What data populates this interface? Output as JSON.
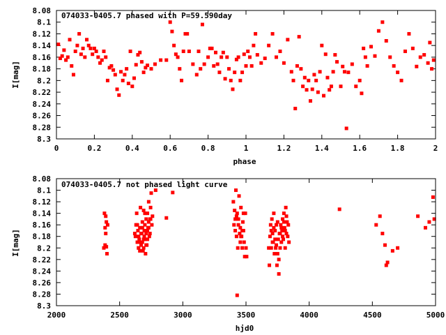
{
  "chart_data": [
    {
      "type": "scatter",
      "title": "074033-0405.7 phased with P=59.590day",
      "xlabel": "phase",
      "ylabel": "I[mag]",
      "xlim": [
        0,
        2
      ],
      "ylim": [
        8.3,
        8.08
      ],
      "y_inverted": true,
      "xticks": [
        0,
        0.2,
        0.4,
        0.6,
        0.8,
        1,
        1.2,
        1.4,
        1.6,
        1.8,
        2
      ],
      "xtick_labels": [
        "0",
        "0.2",
        "0.4",
        "0.6",
        "0.8",
        "1",
        "1.2",
        "1.4",
        "1.6",
        "1.8",
        "2"
      ],
      "yticks": [
        8.08,
        8.1,
        8.12,
        8.14,
        8.16,
        8.18,
        8.2,
        8.22,
        8.24,
        8.26,
        8.28,
        8.3
      ],
      "ytick_labels": [
        "8.08",
        "8.1",
        "8.12",
        "8.14",
        "8.16",
        "8.18",
        "8.2",
        "8.22",
        "8.24",
        "8.26",
        "8.28",
        "8.3"
      ],
      "grid": false,
      "marker_color": "#ff0000",
      "points": [
        [
          0.01,
          8.138
        ],
        [
          0.02,
          8.162
        ],
        [
          0.03,
          8.158
        ],
        [
          0.04,
          8.148
        ],
        [
          0.05,
          8.165
        ],
        [
          0.06,
          8.16
        ],
        [
          0.07,
          8.13
        ],
        [
          0.08,
          8.175
        ],
        [
          0.09,
          8.19
        ],
        [
          0.1,
          8.15
        ],
        [
          0.11,
          8.14
        ],
        [
          0.12,
          8.12
        ],
        [
          0.13,
          8.155
        ],
        [
          0.14,
          8.145
        ],
        [
          0.15,
          8.16
        ],
        [
          0.16,
          8.13
        ],
        [
          0.17,
          8.14
        ],
        [
          0.18,
          8.145
        ],
        [
          0.19,
          8.155
        ],
        [
          0.2,
          8.145
        ],
        [
          0.21,
          8.15
        ],
        [
          0.22,
          8.16
        ],
        [
          0.23,
          8.17
        ],
        [
          0.24,
          8.165
        ],
        [
          0.25,
          8.15
        ],
        [
          0.26,
          8.16
        ],
        [
          0.27,
          8.2
        ],
        [
          0.28,
          8.178
        ],
        [
          0.29,
          8.175
        ],
        [
          0.3,
          8.182
        ],
        [
          0.31,
          8.19
        ],
        [
          0.32,
          8.215
        ],
        [
          0.33,
          8.225
        ],
        [
          0.34,
          8.185
        ],
        [
          0.35,
          8.2
        ],
        [
          0.36,
          8.19
        ],
        [
          0.37,
          8.18
        ],
        [
          0.38,
          8.205
        ],
        [
          0.39,
          8.15
        ],
        [
          0.4,
          8.21
        ],
        [
          0.41,
          8.196
        ],
        [
          0.42,
          8.173
        ],
        [
          0.43,
          8.156
        ],
        [
          0.44,
          8.152
        ],
        [
          0.45,
          8.168
        ],
        [
          0.46,
          8.186
        ],
        [
          0.47,
          8.178
        ],
        [
          0.48,
          8.174
        ],
        [
          0.5,
          8.18
        ],
        [
          0.52,
          8.172
        ],
        [
          0.55,
          8.165
        ],
        [
          0.58,
          8.165
        ],
        [
          0.6,
          8.1
        ],
        [
          0.61,
          8.116
        ],
        [
          0.62,
          8.14
        ],
        [
          0.63,
          8.155
        ],
        [
          0.64,
          8.16
        ],
        [
          0.65,
          8.18
        ],
        [
          0.66,
          8.2
        ],
        [
          0.67,
          8.15
        ],
        [
          0.68,
          8.12
        ],
        [
          0.69,
          8.12
        ],
        [
          0.7,
          8.15
        ],
        [
          0.72,
          8.172
        ],
        [
          0.74,
          8.19
        ],
        [
          0.75,
          8.15
        ],
        [
          0.76,
          8.18
        ],
        [
          0.77,
          8.104
        ],
        [
          0.78,
          8.172
        ],
        [
          0.8,
          8.16
        ],
        [
          0.81,
          8.145
        ],
        [
          0.82,
          8.145
        ],
        [
          0.83,
          8.175
        ],
        [
          0.84,
          8.152
        ],
        [
          0.85,
          8.172
        ],
        [
          0.86,
          8.186
        ],
        [
          0.87,
          8.16
        ],
        [
          0.88,
          8.152
        ],
        [
          0.89,
          8.197
        ],
        [
          0.9,
          8.16
        ],
        [
          0.91,
          8.18
        ],
        [
          0.92,
          8.2
        ],
        [
          0.93,
          8.215
        ],
        [
          0.94,
          8.186
        ],
        [
          0.95,
          8.164
        ],
        [
          0.96,
          8.16
        ],
        [
          0.97,
          8.2
        ],
        [
          0.98,
          8.186
        ],
        [
          0.99,
          8.155
        ],
        [
          1.0,
          8.175
        ],
        [
          1.01,
          8.15
        ],
        [
          1.02,
          8.16
        ],
        [
          1.03,
          8.175
        ],
        [
          1.04,
          8.14
        ],
        [
          1.05,
          8.12
        ],
        [
          1.06,
          8.156
        ],
        [
          1.08,
          8.17
        ],
        [
          1.1,
          8.162
        ],
        [
          1.12,
          8.14
        ],
        [
          1.14,
          8.12
        ],
        [
          1.16,
          8.16
        ],
        [
          1.18,
          8.15
        ],
        [
          1.2,
          8.17
        ],
        [
          1.22,
          8.13
        ],
        [
          1.24,
          8.185
        ],
        [
          1.25,
          8.2
        ],
        [
          1.26,
          8.248
        ],
        [
          1.27,
          8.175
        ],
        [
          1.28,
          8.125
        ],
        [
          1.29,
          8.18
        ],
        [
          1.3,
          8.21
        ],
        [
          1.31,
          8.195
        ],
        [
          1.32,
          8.216
        ],
        [
          1.33,
          8.2
        ],
        [
          1.34,
          8.235
        ],
        [
          1.35,
          8.215
        ],
        [
          1.36,
          8.19
        ],
        [
          1.37,
          8.2
        ],
        [
          1.38,
          8.22
        ],
        [
          1.39,
          8.185
        ],
        [
          1.4,
          8.14
        ],
        [
          1.41,
          8.226
        ],
        [
          1.42,
          8.155
        ],
        [
          1.43,
          8.195
        ],
        [
          1.44,
          8.216
        ],
        [
          1.45,
          8.21
        ],
        [
          1.46,
          8.185
        ],
        [
          1.47,
          8.156
        ],
        [
          1.48,
          8.168
        ],
        [
          1.5,
          8.21
        ],
        [
          1.51,
          8.176
        ],
        [
          1.52,
          8.185
        ],
        [
          1.53,
          8.282
        ],
        [
          1.54,
          8.186
        ],
        [
          1.56,
          8.172
        ],
        [
          1.58,
          8.21
        ],
        [
          1.6,
          8.2
        ],
        [
          1.61,
          8.222
        ],
        [
          1.62,
          8.145
        ],
        [
          1.63,
          8.16
        ],
        [
          1.64,
          8.175
        ],
        [
          1.66,
          8.142
        ],
        [
          1.68,
          8.158
        ],
        [
          1.7,
          8.115
        ],
        [
          1.72,
          8.1
        ],
        [
          1.74,
          8.132
        ],
        [
          1.76,
          8.16
        ],
        [
          1.78,
          8.175
        ],
        [
          1.8,
          8.186
        ],
        [
          1.82,
          8.2
        ],
        [
          1.84,
          8.15
        ],
        [
          1.86,
          8.12
        ],
        [
          1.88,
          8.145
        ],
        [
          1.9,
          8.176
        ],
        [
          1.92,
          8.16
        ],
        [
          1.94,
          8.156
        ],
        [
          1.96,
          8.17
        ],
        [
          1.97,
          8.135
        ],
        [
          1.98,
          8.18
        ],
        [
          1.99,
          8.165
        ]
      ]
    },
    {
      "type": "scatter",
      "title": "074033-0405.7 not phased light curve",
      "xlabel": "hjd0",
      "ylabel": "I[mag]",
      "xlim": [
        2000,
        5000
      ],
      "ylim": [
        8.3,
        8.08
      ],
      "y_inverted": true,
      "xticks": [
        2000,
        2500,
        3000,
        3500,
        4000,
        4500,
        5000
      ],
      "xtick_labels": [
        "2000",
        "2500",
        "3000",
        "3500",
        "4000",
        "4500",
        "5000"
      ],
      "yticks": [
        8.08,
        8.1,
        8.12,
        8.14,
        8.16,
        8.18,
        8.2,
        8.22,
        8.24,
        8.26,
        8.28,
        8.3
      ],
      "ytick_labels": [
        "8.08",
        "8.1",
        "8.12",
        "8.14",
        "8.16",
        "8.18",
        "8.2",
        "8.22",
        "8.24",
        "8.26",
        "8.28",
        "8.3"
      ],
      "grid": false,
      "marker_color": "#ff0000",
      "points": [
        [
          2375,
          8.2
        ],
        [
          2380,
          8.14
        ],
        [
          2385,
          8.165
        ],
        [
          2390,
          8.145
        ],
        [
          2395,
          8.198
        ],
        [
          2400,
          8.21
        ],
        [
          2405,
          8.16
        ],
        [
          2395,
          8.155
        ],
        [
          2390,
          8.175
        ],
        [
          2385,
          8.195
        ],
        [
          2620,
          8.175
        ],
        [
          2625,
          8.18
        ],
        [
          2630,
          8.16
        ],
        [
          2635,
          8.14
        ],
        [
          2640,
          8.19
        ],
        [
          2645,
          8.17
        ],
        [
          2650,
          8.2
        ],
        [
          2655,
          8.185
        ],
        [
          2660,
          8.165
        ],
        [
          2665,
          8.13
        ],
        [
          2670,
          8.195
        ],
        [
          2675,
          8.175
        ],
        [
          2680,
          8.155
        ],
        [
          2685,
          8.205
        ],
        [
          2690,
          8.185
        ],
        [
          2695,
          8.17
        ],
        [
          2700,
          8.16
        ],
        [
          2705,
          8.21
        ],
        [
          2710,
          8.175
        ],
        [
          2715,
          8.195
        ],
        [
          2720,
          8.14
        ],
        [
          2725,
          8.165
        ],
        [
          2730,
          8.12
        ],
        [
          2735,
          8.18
        ],
        [
          2740,
          8.15
        ],
        [
          2745,
          8.13
        ],
        [
          2750,
          8.105
        ],
        [
          2755,
          8.16
        ],
        [
          2760,
          8.145
        ],
        [
          2640,
          8.16
        ],
        [
          2650,
          8.18
        ],
        [
          2660,
          8.19
        ],
        [
          2670,
          8.175
        ],
        [
          2680,
          8.165
        ],
        [
          2690,
          8.2
        ],
        [
          2700,
          8.185
        ],
        [
          2710,
          8.195
        ],
        [
          2720,
          8.17
        ],
        [
          2730,
          8.155
        ],
        [
          2740,
          8.175
        ],
        [
          2700,
          8.14
        ],
        [
          2690,
          8.135
        ],
        [
          2710,
          8.15
        ],
        [
          2720,
          8.185
        ],
        [
          2650,
          8.2
        ],
        [
          2660,
          8.205
        ],
        [
          2680,
          8.19
        ],
        [
          2695,
          8.18
        ],
        [
          2730,
          8.165
        ],
        [
          2745,
          8.15
        ],
        [
          2785,
          8.1
        ],
        [
          2870,
          8.148
        ],
        [
          2920,
          8.104
        ],
        [
          3400,
          8.12
        ],
        [
          3405,
          8.16
        ],
        [
          3410,
          8.135
        ],
        [
          3415,
          8.15
        ],
        [
          3420,
          8.1
        ],
        [
          3425,
          8.18
        ],
        [
          3430,
          8.14
        ],
        [
          3435,
          8.2
        ],
        [
          3440,
          8.16
        ],
        [
          3445,
          8.11
        ],
        [
          3450,
          8.175
        ],
        [
          3455,
          8.19
        ],
        [
          3460,
          8.13
        ],
        [
          3465,
          8.18
        ],
        [
          3470,
          8.2
        ],
        [
          3475,
          8.155
        ],
        [
          3480,
          8.17
        ],
        [
          3485,
          8.19
        ],
        [
          3490,
          8.215
        ],
        [
          3495,
          8.14
        ],
        [
          3500,
          8.2
        ],
        [
          3430,
          8.282
        ],
        [
          3415,
          8.17
        ],
        [
          3425,
          8.145
        ],
        [
          3440,
          8.15
        ],
        [
          3455,
          8.165
        ],
        [
          3460,
          8.18
        ],
        [
          3470,
          8.17
        ],
        [
          3480,
          8.14
        ],
        [
          3505,
          8.215
        ],
        [
          3680,
          8.2
        ],
        [
          3685,
          8.23
        ],
        [
          3690,
          8.18
        ],
        [
          3695,
          8.16
        ],
        [
          3700,
          8.2
        ],
        [
          3705,
          8.15
        ],
        [
          3710,
          8.175
        ],
        [
          3715,
          8.19
        ],
        [
          3720,
          8.14
        ],
        [
          3725,
          8.21
        ],
        [
          3730,
          8.17
        ],
        [
          3735,
          8.2
        ],
        [
          3740,
          8.16
        ],
        [
          3745,
          8.23
        ],
        [
          3750,
          8.155
        ],
        [
          3755,
          8.185
        ],
        [
          3760,
          8.245
        ],
        [
          3765,
          8.175
        ],
        [
          3770,
          8.2
        ],
        [
          3775,
          8.16
        ],
        [
          3780,
          8.19
        ],
        [
          3785,
          8.17
        ],
        [
          3790,
          8.15
        ],
        [
          3795,
          8.185
        ],
        [
          3800,
          8.14
        ],
        [
          3805,
          8.165
        ],
        [
          3810,
          8.2
        ],
        [
          3815,
          8.13
        ],
        [
          3820,
          8.175
        ],
        [
          3825,
          8.155
        ],
        [
          3830,
          8.18
        ],
        [
          3835,
          8.16
        ],
        [
          3840,
          8.19
        ],
        [
          3700,
          8.17
        ],
        [
          3710,
          8.19
        ],
        [
          3720,
          8.165
        ],
        [
          3730,
          8.185
        ],
        [
          3740,
          8.195
        ],
        [
          3750,
          8.21
        ],
        [
          3760,
          8.22
        ],
        [
          3770,
          8.175
        ],
        [
          3780,
          8.165
        ],
        [
          3790,
          8.18
        ],
        [
          3800,
          8.155
        ],
        [
          3810,
          8.17
        ],
        [
          3820,
          8.145
        ],
        [
          4240,
          8.133
        ],
        [
          4530,
          8.16
        ],
        [
          4560,
          8.145
        ],
        [
          4580,
          8.175
        ],
        [
          4600,
          8.195
        ],
        [
          4610,
          8.23
        ],
        [
          4620,
          8.225
        ],
        [
          4660,
          8.205
        ],
        [
          4700,
          8.2
        ],
        [
          4860,
          8.145
        ],
        [
          4920,
          8.165
        ],
        [
          4950,
          8.155
        ],
        [
          4980,
          8.112
        ],
        [
          4990,
          8.15
        ]
      ]
    }
  ]
}
